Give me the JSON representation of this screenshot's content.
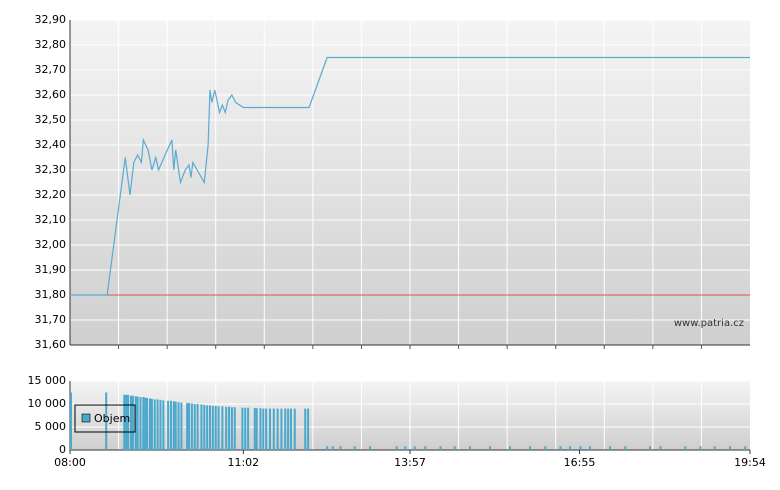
{
  "chart_data": [
    {
      "type": "line",
      "xlim": [
        "08:00",
        "19:54"
      ],
      "ylim": [
        31.6,
        32.9
      ],
      "yticks": [
        {
          "value": 31.6,
          "label": "31,60"
        },
        {
          "value": 31.7,
          "label": "31,70"
        },
        {
          "value": 31.8,
          "label": "31,80"
        },
        {
          "value": 31.9,
          "label": "31,90"
        },
        {
          "value": 32.0,
          "label": "32,00"
        },
        {
          "value": 32.1,
          "label": "32,10"
        },
        {
          "value": 32.2,
          "label": "32,20"
        },
        {
          "value": 32.3,
          "label": "32,30"
        },
        {
          "value": 32.4,
          "label": "32,40"
        },
        {
          "value": 32.5,
          "label": "32,50"
        },
        {
          "value": 32.6,
          "label": "32,60"
        },
        {
          "value": 32.7,
          "label": "32,70"
        },
        {
          "value": 32.8,
          "label": "32,80"
        },
        {
          "value": 32.9,
          "label": "32,90"
        }
      ],
      "x": [
        "08:00",
        "08:39",
        "08:58",
        "09:03",
        "09:07",
        "09:11",
        "09:15",
        "09:17",
        "09:22",
        "09:26",
        "09:30",
        "09:33",
        "09:41",
        "09:47",
        "09:49",
        "09:51",
        "09:56",
        "10:01",
        "10:05",
        "10:07",
        "10:09",
        "10:15",
        "10:21",
        "10:25",
        "10:27",
        "10:29",
        "10:32",
        "10:37",
        "10:40",
        "10:43",
        "10:46",
        "10:50",
        "10:54",
        "11:02",
        "12:11",
        "12:30",
        "19:54"
      ],
      "values": [
        31.8,
        31.8,
        32.35,
        32.2,
        32.33,
        32.36,
        32.33,
        32.42,
        32.38,
        32.3,
        32.35,
        32.3,
        32.37,
        32.42,
        32.3,
        32.38,
        32.25,
        32.3,
        32.32,
        32.27,
        32.33,
        32.29,
        32.25,
        32.4,
        32.62,
        32.57,
        32.62,
        32.53,
        32.56,
        32.53,
        32.58,
        32.6,
        32.57,
        32.55,
        32.55,
        32.75,
        32.75
      ],
      "color": "#5aaad2",
      "reference_line": 31.8,
      "reference_color": "#d9534f",
      "annotation": "www.patria.cz",
      "grid": true
    },
    {
      "type": "bar",
      "xlim": [
        "08:00",
        "19:54"
      ],
      "xticks": [
        "08:00",
        "11:02",
        "13:57",
        "16:55",
        "19:54"
      ],
      "ylim": [
        0,
        15000
      ],
      "yticks": [
        0,
        {
          "value": 5000,
          "label": "5 000"
        },
        {
          "value": 10000,
          "label": "10 000"
        },
        {
          "value": 15000,
          "label": "15 000"
        }
      ],
      "series": [
        {
          "name": "Objem",
          "color": "#4aa8cc",
          "x": [
            "08:01",
            "08:38",
            "08:57",
            "08:59",
            "09:01",
            "09:04",
            "09:06",
            "09:09",
            "09:11",
            "09:14",
            "09:17",
            "09:19",
            "09:21",
            "09:24",
            "09:26",
            "09:29",
            "09:32",
            "09:35",
            "09:38",
            "09:43",
            "09:46",
            "09:49",
            "09:51",
            "09:54",
            "09:57",
            "10:03",
            "10:05",
            "10:08",
            "10:11",
            "10:14",
            "10:18",
            "10:21",
            "10:24",
            "10:27",
            "10:30",
            "10:33",
            "10:36",
            "10:40",
            "10:44",
            "10:47",
            "10:50",
            "10:53",
            "11:01",
            "11:04",
            "11:07",
            "11:14",
            "11:16",
            "11:20",
            "11:23",
            "11:26",
            "11:30",
            "11:34",
            "11:38",
            "11:42",
            "11:46",
            "11:49",
            "11:52",
            "11:56",
            "12:07",
            "12:10",
            "12:30",
            "12:36",
            "12:44",
            "12:59",
            "13:15",
            "13:43",
            "13:52",
            "14:02",
            "14:13",
            "14:29",
            "14:44",
            "15:00",
            "15:21",
            "15:42",
            "16:03",
            "16:19",
            "16:35",
            "16:45",
            "16:56",
            "17:06",
            "17:27",
            "17:43",
            "18:09",
            "18:20",
            "18:46",
            "19:02",
            "19:17",
            "19:33",
            "19:49"
          ],
          "values": [
            12500,
            12500,
            12000,
            12000,
            12000,
            11800,
            11800,
            11700,
            11600,
            11500,
            11500,
            11400,
            11300,
            11200,
            11100,
            11000,
            11000,
            10900,
            10800,
            10700,
            10700,
            10600,
            10500,
            10400,
            10300,
            10200,
            10200,
            10100,
            10000,
            10000,
            9900,
            9800,
            9700,
            9700,
            9600,
            9600,
            9500,
            9500,
            9400,
            9400,
            9300,
            9300,
            9200,
            9200,
            9200,
            9100,
            9100,
            9100,
            9000,
            9000,
            9000,
            9000,
            9000,
            9000,
            9000,
            9000,
            9000,
            9000,
            9000,
            9000,
            800,
            800,
            800,
            800,
            800,
            800,
            800,
            800,
            800,
            800,
            800,
            800,
            800,
            800,
            800,
            800,
            800,
            800,
            800,
            800,
            800,
            800,
            800,
            800,
            800,
            800,
            800,
            800,
            800
          ]
        }
      ],
      "legend": "upper-left",
      "grid": true
    }
  ]
}
